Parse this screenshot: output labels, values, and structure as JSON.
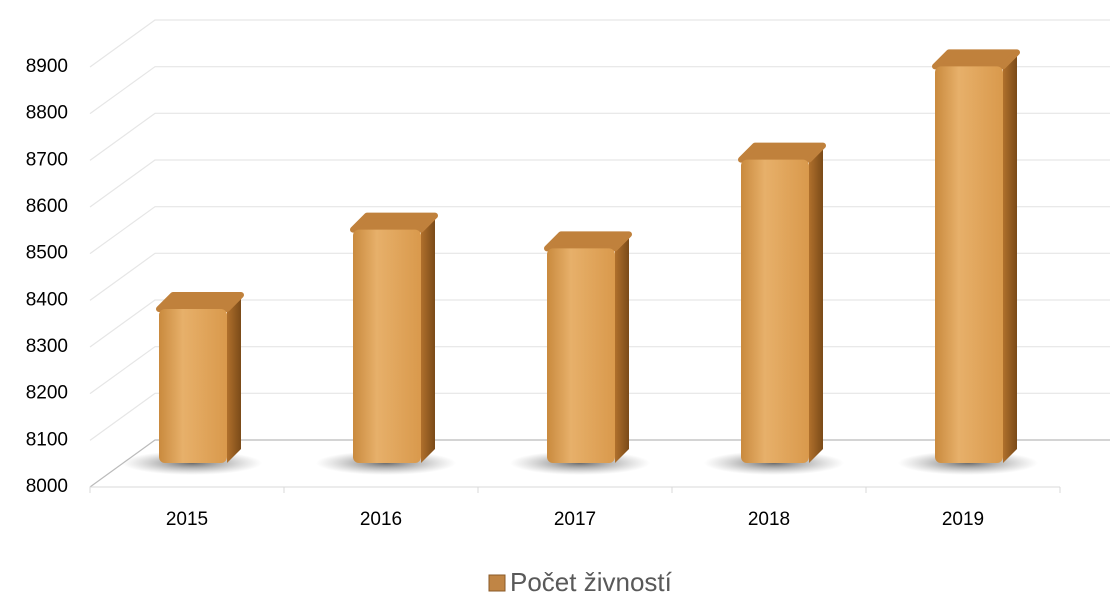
{
  "chart_data": {
    "type": "bar",
    "categories": [
      "2015",
      "2016",
      "2017",
      "2018",
      "2019"
    ],
    "series": [
      {
        "name": "Počet živností",
        "color": "#d9a05a",
        "values": [
          8330,
          8500,
          8460,
          8650,
          8850
        ]
      }
    ],
    "ylim": [
      8000,
      8900
    ],
    "yticks": [
      8000,
      8100,
      8200,
      8300,
      8400,
      8500,
      8600,
      8700,
      8800,
      8900
    ],
    "grid": true,
    "legend": "bottom"
  }
}
